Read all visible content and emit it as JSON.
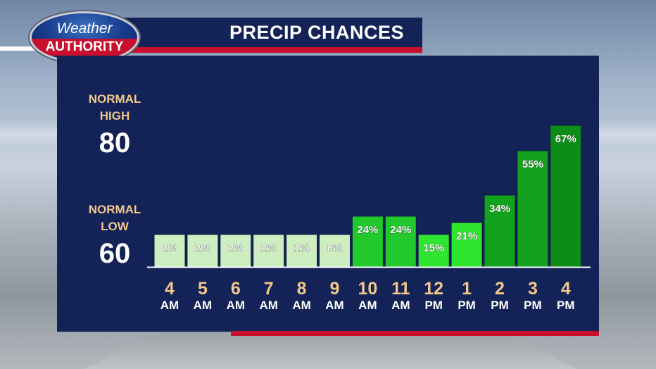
{
  "header": {
    "logo_top": "Weather",
    "logo_bottom": "AUTHORITY",
    "title": "PRECIP CHANCES"
  },
  "normals": {
    "high_label_line1": "NORMAL",
    "high_label_line2": "HIGH",
    "high_value": "80",
    "low_label_line1": "NORMAL",
    "low_label_line2": "LOW",
    "low_value": "60"
  },
  "colors": {
    "panel": "#132257",
    "accent_red": "#c8102e",
    "hour_number": "#f2c88a",
    "bar_low": "#cdeec0",
    "bar_mid": "#22c92d",
    "bar_bright": "#2fe62f",
    "bar_high": "#13a21d",
    "bar_top": "#0c8e16"
  },
  "chart_data": {
    "type": "bar",
    "title": "PRECIP CHANCES",
    "categories": [
      "4 AM",
      "5 AM",
      "6 AM",
      "7 AM",
      "8 AM",
      "9 AM",
      "10 AM",
      "11 AM",
      "12 PM",
      "1 PM",
      "2 PM",
      "3 PM",
      "4 PM"
    ],
    "hours": [
      "4",
      "5",
      "6",
      "7",
      "8",
      "9",
      "10",
      "11",
      "12",
      "1",
      "2",
      "3",
      "4"
    ],
    "periods": [
      "AM",
      "AM",
      "AM",
      "AM",
      "AM",
      "AM",
      "AM",
      "AM",
      "PM",
      "PM",
      "PM",
      "PM",
      "PM"
    ],
    "values": [
      2,
      2,
      2,
      2,
      1,
      8,
      24,
      24,
      15,
      21,
      34,
      55,
      67
    ],
    "labels": [
      "2%",
      "2%",
      "2%",
      "2%",
      "1%",
      "8%",
      "24%",
      "24%",
      "15%",
      "21%",
      "34%",
      "55%",
      "67%"
    ],
    "unit": "%",
    "ylim": [
      0,
      100
    ]
  }
}
